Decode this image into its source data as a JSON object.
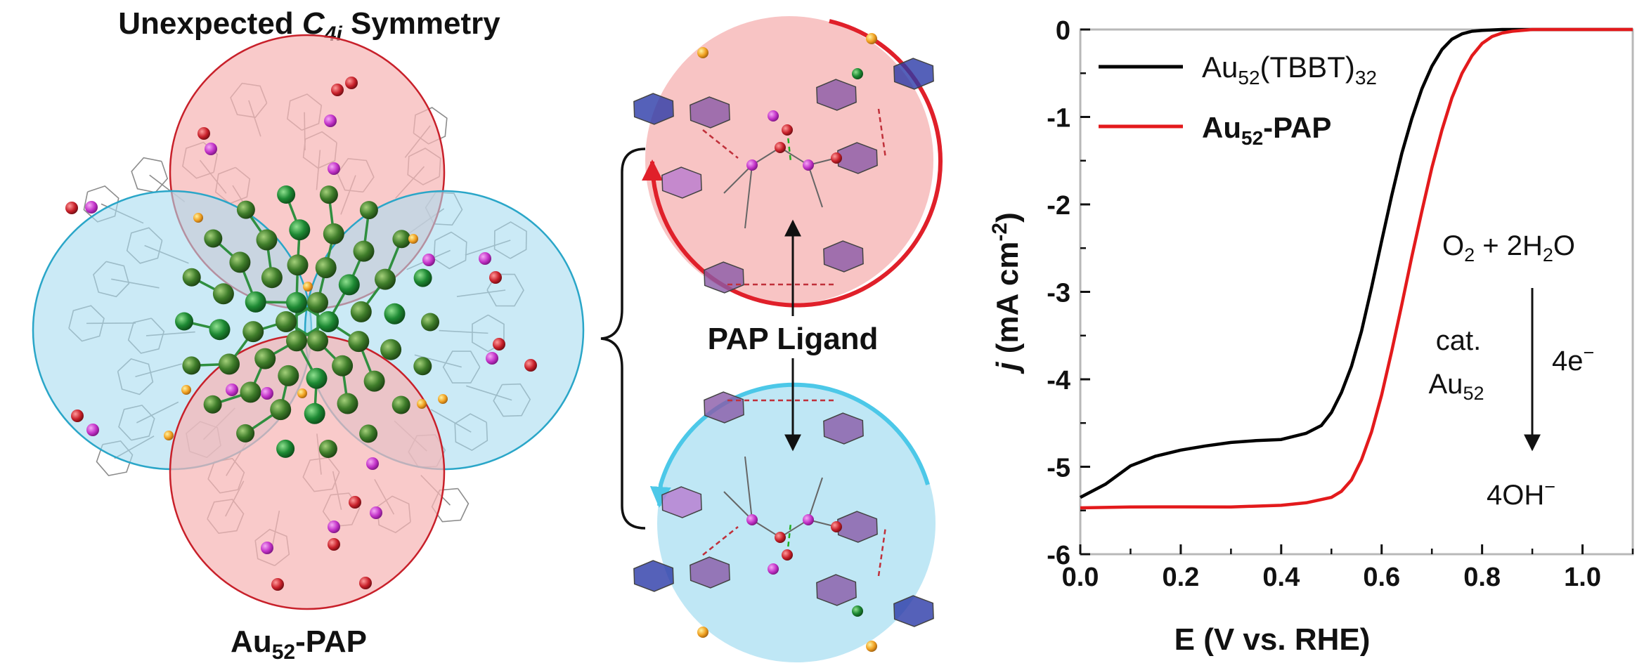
{
  "left_panel": {
    "title_prefix": "Unexpected ",
    "title_symbol": "C",
    "title_subscript": "4i",
    "title_suffix": " Symmetry",
    "cluster_name_base": "Au",
    "cluster_name_sub": "52",
    "cluster_name_suffix": "-PAP"
  },
  "middle_panel": {
    "ligand_label": "PAP Ligand"
  },
  "colors": {
    "red_circle_fill": "#f8c4c4",
    "red_circle_stroke": "#d42a2a",
    "blue_circle_fill": "#bfe7f5",
    "blue_circle_stroke": "#2aa6c8",
    "au_atom": "#3f7d2a",
    "bond_green": "#2f8f3f",
    "p_atom": "#c232c8",
    "o_atom": "#c8202a",
    "s_atom": "#f0a020",
    "ring_blue": "#2a3aa8",
    "series_black": "#000000",
    "series_red": "#e31a1c"
  },
  "chart_data": {
    "type": "line",
    "title": "",
    "xlabel": "E (V vs. RHE)",
    "ylabel_j": "j",
    "ylabel_unit": " (mA cm",
    "ylabel_exp": "-2",
    "ylabel_close": ")",
    "xlim": [
      0.0,
      1.1
    ],
    "ylim": [
      -6,
      0
    ],
    "xticks": [
      "0.0",
      "0.2",
      "0.4",
      "0.6",
      "0.8",
      "1.0"
    ],
    "xtick_values": [
      0.0,
      0.2,
      0.4,
      0.6,
      0.8,
      1.0
    ],
    "yticks": [
      "0",
      "-1",
      "-2",
      "-3",
      "-4",
      "-5",
      "-6"
    ],
    "ytick_values": [
      0,
      -1,
      -2,
      -3,
      -4,
      -5,
      -6
    ],
    "series": [
      {
        "name_base": "Au",
        "name_sub": "52",
        "name_rest": "(TBBT)",
        "name_sub2": "32",
        "color": "#000000",
        "bold": false,
        "x": [
          0.0,
          0.05,
          0.1,
          0.15,
          0.2,
          0.25,
          0.3,
          0.35,
          0.4,
          0.45,
          0.48,
          0.5,
          0.52,
          0.54,
          0.56,
          0.58,
          0.6,
          0.62,
          0.64,
          0.66,
          0.68,
          0.7,
          0.72,
          0.74,
          0.76,
          0.78,
          0.8,
          0.84,
          0.9,
          1.0,
          1.1
        ],
        "y": [
          -5.35,
          -5.2,
          -5.0,
          -4.88,
          -4.8,
          -4.75,
          -4.72,
          -4.71,
          -4.7,
          -4.62,
          -4.52,
          -4.38,
          -4.15,
          -3.85,
          -3.45,
          -2.95,
          -2.42,
          -1.9,
          -1.42,
          -1.02,
          -0.68,
          -0.42,
          -0.23,
          -0.11,
          -0.05,
          -0.02,
          -0.01,
          0.0,
          0.0,
          0.0,
          0.0
        ]
      },
      {
        "name_base": "Au",
        "name_sub": "52",
        "name_rest": "-PAP",
        "name_sub2": "",
        "color": "#e31a1c",
        "bold": true,
        "x": [
          0.0,
          0.1,
          0.2,
          0.3,
          0.4,
          0.45,
          0.5,
          0.52,
          0.54,
          0.56,
          0.58,
          0.6,
          0.62,
          0.64,
          0.66,
          0.68,
          0.7,
          0.72,
          0.74,
          0.76,
          0.78,
          0.8,
          0.82,
          0.84,
          0.86,
          0.88,
          0.9,
          0.95,
          1.0,
          1.1
        ],
        "y": [
          -5.47,
          -5.47,
          -5.46,
          -5.45,
          -5.43,
          -5.41,
          -5.35,
          -5.28,
          -5.15,
          -4.92,
          -4.6,
          -4.18,
          -3.68,
          -3.15,
          -2.6,
          -2.08,
          -1.58,
          -1.15,
          -0.78,
          -0.5,
          -0.3,
          -0.16,
          -0.08,
          -0.04,
          -0.02,
          -0.01,
          0.0,
          0.0,
          0.0,
          0.0
        ]
      }
    ],
    "annotation": {
      "reactant_o": "O",
      "reactant_o_sub": "2",
      "reactant_plus": " + 2H",
      "reactant_h_sub": "2",
      "reactant_tail": "O",
      "cat_label": "cat.",
      "catalyst_base": "Au",
      "catalyst_sub": "52",
      "electrons_base": "4e",
      "electrons_sup": "−",
      "product_base": "4OH",
      "product_sup": "−"
    }
  }
}
